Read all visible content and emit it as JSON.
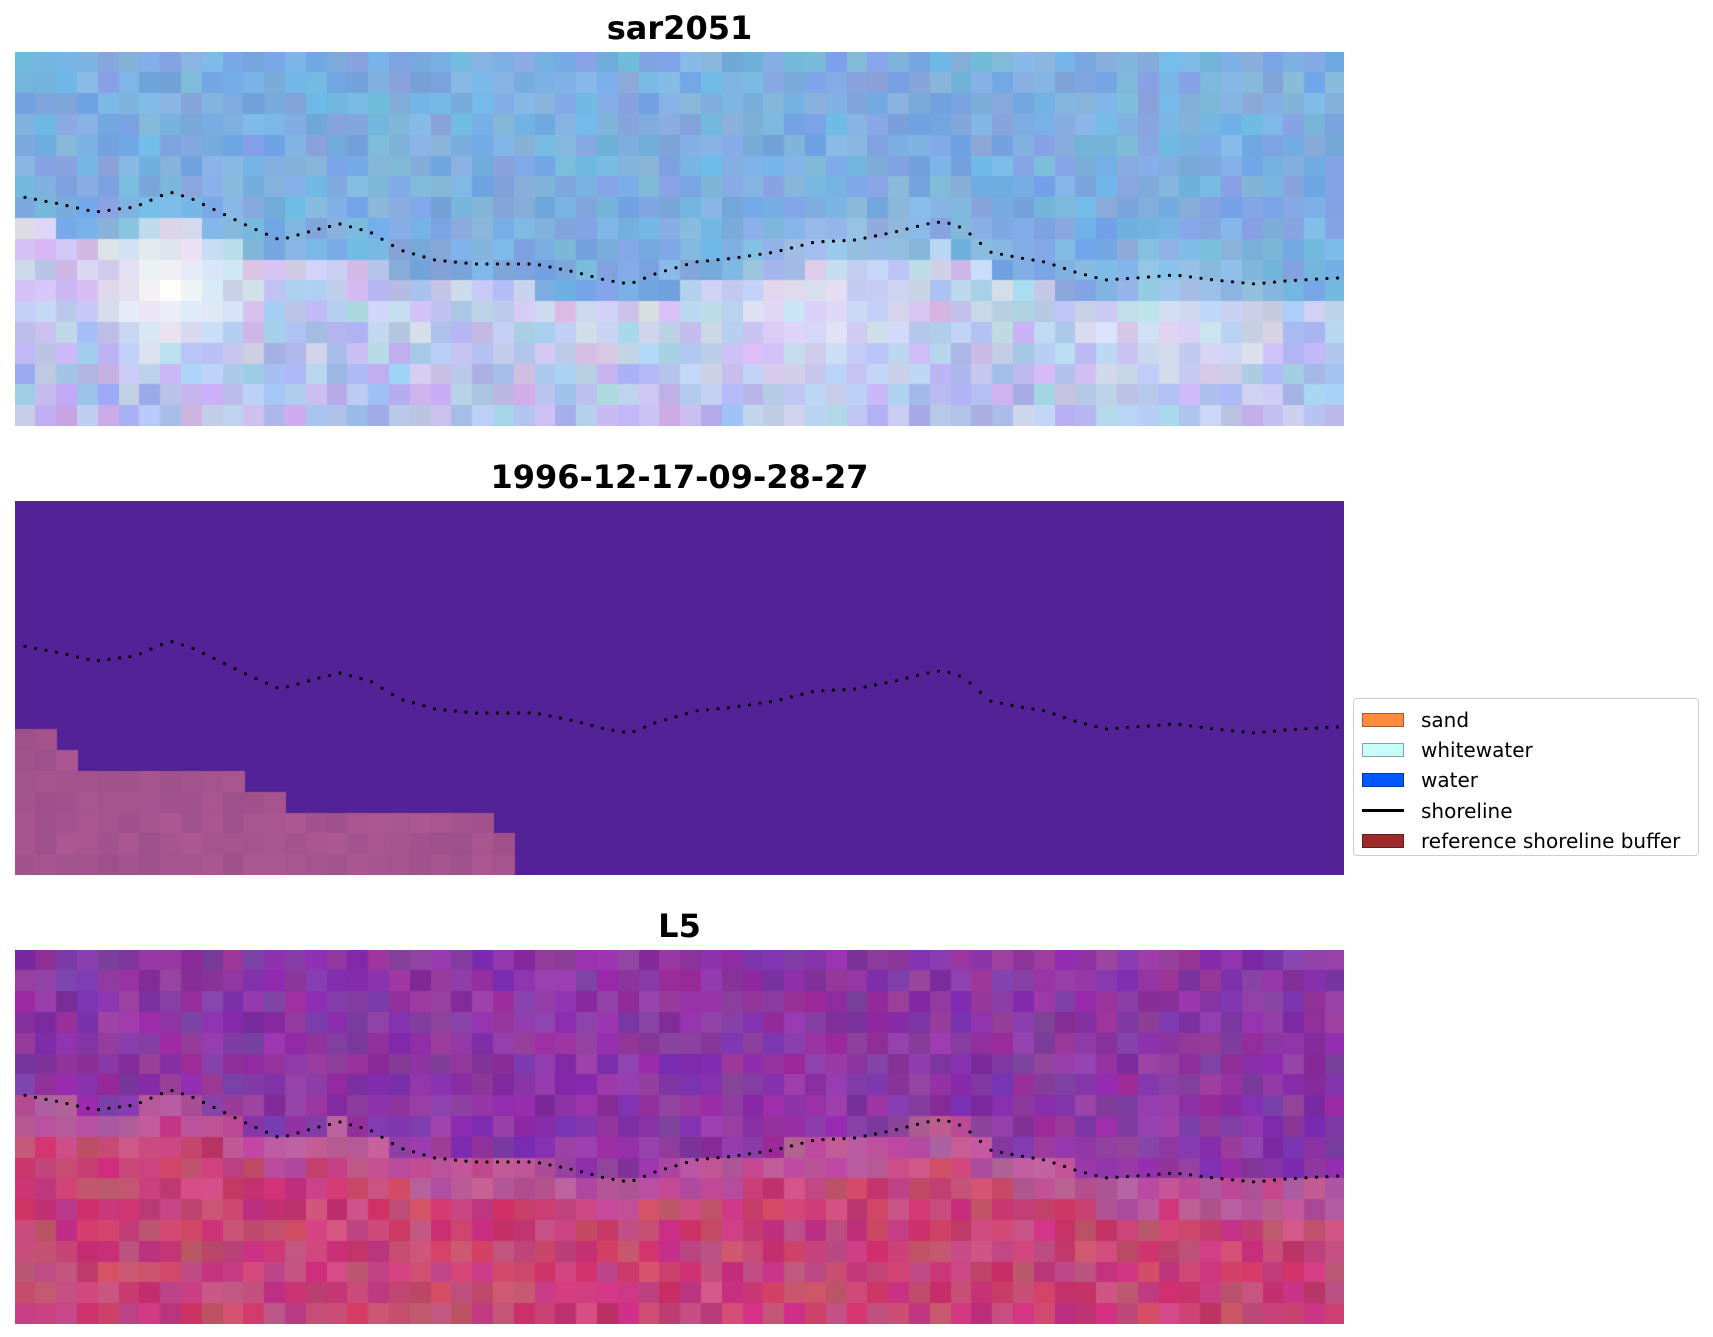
{
  "panels": [
    {
      "title": "sar2051",
      "style": "sar"
    },
    {
      "title": "1996-12-17-09-28-27",
      "style": "class"
    },
    {
      "title": "L5",
      "style": "l5"
    }
  ],
  "legend": {
    "items": [
      {
        "label": "sand",
        "color": "#ff8c3e",
        "kind": "patch"
      },
      {
        "label": "whitewater",
        "color": "#c8fcfb",
        "kind": "patch"
      },
      {
        "label": "water",
        "color": "#0057ff",
        "kind": "patch"
      },
      {
        "label": "shoreline",
        "color": "#000000",
        "kind": "line"
      },
      {
        "label": "reference shoreline buffer",
        "color": "#9e2b2b",
        "kind": "patch"
      }
    ]
  },
  "colors": {
    "class_background": "#532296",
    "buffer_pink": "#a2548f",
    "shoreline_dots": "#000000"
  }
}
